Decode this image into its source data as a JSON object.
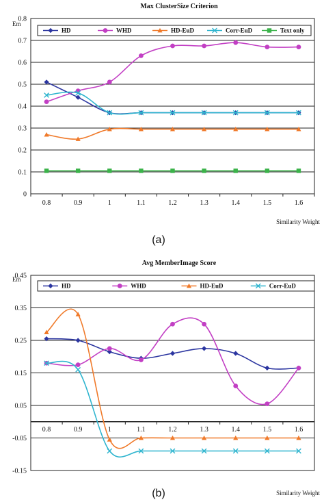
{
  "chart_data": [
    {
      "type": "line",
      "title": "Max ClusterSize Criterion",
      "ylabel": "Em",
      "xlabel": "Similarity Weight",
      "caption": "(a)",
      "x": [
        "0.8",
        "0.9",
        "1",
        "1.1",
        "1.2",
        "1.3",
        "1.4",
        "1.5",
        "1.6"
      ],
      "ylim": [
        0,
        0.8
      ],
      "yticks": [
        "0",
        "0.1",
        "0.2",
        "0.3",
        "0.4",
        "0.5",
        "0.6",
        "0.7",
        "0.8"
      ],
      "grid": true,
      "legend_position": "top",
      "series": [
        {
          "name": "HD",
          "color": "#2b35a0",
          "marker": "diamond",
          "values": [
            0.51,
            0.44,
            0.37,
            0.37,
            0.37,
            0.37,
            0.37,
            0.37,
            0.37
          ]
        },
        {
          "name": "WHD",
          "color": "#c23fc4",
          "marker": "circle",
          "values": [
            0.42,
            0.47,
            0.51,
            0.63,
            0.675,
            0.675,
            0.69,
            0.67,
            0.67
          ]
        },
        {
          "name": "HD-EuD",
          "color": "#f07a2a",
          "marker": "triangle",
          "values": [
            0.27,
            0.25,
            0.295,
            0.295,
            0.295,
            0.295,
            0.295,
            0.295,
            0.295
          ]
        },
        {
          "name": "Corr-EuD",
          "color": "#2fb5cf",
          "marker": "x",
          "values": [
            0.45,
            0.46,
            0.37,
            0.37,
            0.37,
            0.37,
            0.37,
            0.37,
            0.37
          ]
        },
        {
          "name": "Text only",
          "color": "#3bb34a",
          "marker": "square",
          "values": [
            0.105,
            0.105,
            0.105,
            0.105,
            0.105,
            0.105,
            0.105,
            0.105,
            0.105
          ]
        }
      ]
    },
    {
      "type": "line",
      "title": "Avg MemberImage Score",
      "ylabel": "Em",
      "xlabel": "Similarity Weight",
      "caption": "(b)",
      "x": [
        "0.8",
        "0.9",
        "1",
        "1.1",
        "1.2",
        "1.3",
        "1.4",
        "1.5",
        "1.6"
      ],
      "ylim": [
        -0.15,
        0.45
      ],
      "yticks": [
        "-0.15",
        "-0.05",
        "0.05",
        "0.15",
        "0.25",
        "0.35",
        "0.45"
      ],
      "grid": true,
      "legend_position": "top",
      "series": [
        {
          "name": "HD",
          "color": "#2b35a0",
          "marker": "diamond",
          "values": [
            0.255,
            0.25,
            0.215,
            0.195,
            0.21,
            0.225,
            0.21,
            0.165,
            0.165
          ]
        },
        {
          "name": "WHD",
          "color": "#c23fc4",
          "marker": "circle",
          "values": [
            0.18,
            0.175,
            0.225,
            0.19,
            0.3,
            0.3,
            0.11,
            0.055,
            0.165
          ]
        },
        {
          "name": "HD-EuD",
          "color": "#f07a2a",
          "marker": "triangle",
          "values": [
            0.275,
            0.33,
            -0.055,
            -0.05,
            -0.05,
            -0.05,
            -0.05,
            -0.05,
            -0.05
          ]
        },
        {
          "name": "Corr-EuD",
          "color": "#2fb5cf",
          "marker": "x",
          "values": [
            0.18,
            0.16,
            -0.09,
            -0.09,
            -0.09,
            -0.09,
            -0.09,
            -0.09,
            -0.09
          ]
        }
      ]
    }
  ]
}
